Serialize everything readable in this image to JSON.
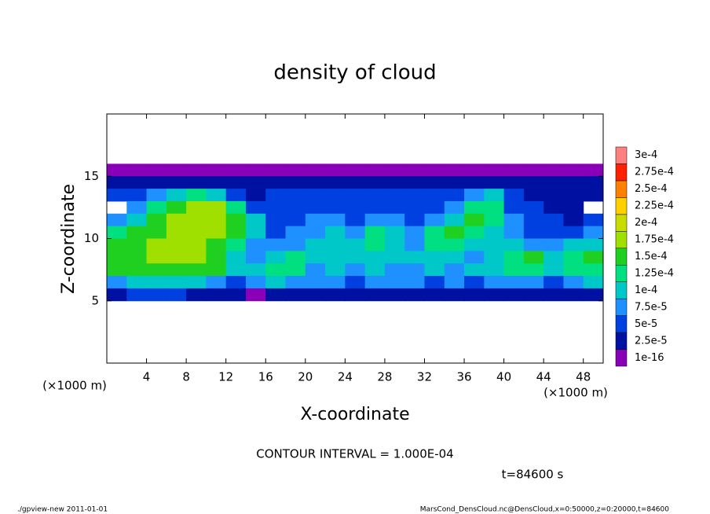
{
  "chart_data": {
    "type": "heatmap",
    "title": "density of cloud",
    "x_label": "X-coordinate",
    "y_label": "Z-coordinate",
    "x_unit": "(×1000 m)",
    "y_unit": "(×1000 m)",
    "contour_note": "CONTOUR INTERVAL = 1.000E-04",
    "time_label": "t=84600 s",
    "footer_left": "./gpview-new  2011-01-01",
    "footer_right": "MarsCond_DensCloud.nc@DensCloud,x=0:50000,z=0:20000,t=84600",
    "xlim": [
      0,
      50
    ],
    "ylim": [
      0,
      20
    ],
    "xticks": [
      4,
      8,
      12,
      16,
      20,
      24,
      28,
      32,
      36,
      40,
      44,
      48
    ],
    "yticks": [
      5,
      10,
      15
    ],
    "x": [
      1,
      3,
      5,
      7,
      9,
      11,
      13,
      15,
      17,
      19,
      21,
      23,
      25,
      27,
      29,
      31,
      33,
      35,
      37,
      39,
      41,
      43,
      45,
      47,
      49
    ],
    "y": [
      15.5,
      14.5,
      13.5,
      12.5,
      11.5,
      10.5,
      9.5,
      8.5,
      7.5,
      6.5,
      5.5
    ],
    "z": [
      [
        1e-05,
        1e-05,
        1e-05,
        1e-05,
        1e-05,
        1e-05,
        1e-05,
        1e-05,
        1e-05,
        1e-05,
        1e-05,
        1e-05,
        1e-05,
        1e-05,
        1e-05,
        1e-05,
        1e-05,
        1e-05,
        1e-05,
        1e-05,
        1e-05,
        1e-05,
        1e-05,
        1e-05,
        1e-05
      ],
      [
        3e-05,
        3e-05,
        3e-05,
        4e-05,
        4e-05,
        4e-05,
        4e-05,
        3e-05,
        3e-05,
        3e-05,
        3e-05,
        3e-05,
        3e-05,
        3e-05,
        3e-05,
        3e-05,
        3e-05,
        3e-05,
        4e-05,
        4e-05,
        3e-05,
        3e-05,
        3e-05,
        3e-05,
        3e-05
      ],
      [
        5e-05,
        6e-05,
        8e-05,
        0.00011,
        0.00013,
        0.00012,
        6e-05,
        4e-05,
        5e-05,
        5e-05,
        5e-05,
        5e-05,
        5e-05,
        5e-05,
        5e-05,
        5e-05,
        5e-05,
        5e-05,
        8e-05,
        0.0001,
        5e-05,
        3e-05,
        3e-05,
        3e-05,
        3e-05
      ],
      [
        null,
        8e-05,
        0.00013,
        0.00017,
        0.00019,
        0.00018,
        0.00014,
        7e-05,
        6e-05,
        6e-05,
        6e-05,
        6e-05,
        6e-05,
        6e-05,
        6e-05,
        6e-05,
        6e-05,
        8e-05,
        0.00013,
        0.00014,
        7e-05,
        5e-05,
        4e-05,
        4e-05,
        null
      ],
      [
        9e-05,
        0.00012,
        0.00016,
        0.00018,
        0.00019,
        0.00018,
        0.00016,
        0.0001,
        6e-05,
        7e-05,
        8e-05,
        8e-05,
        7e-05,
        9e-05,
        8e-05,
        7e-05,
        8e-05,
        0.00012,
        0.00015,
        0.00014,
        8e-05,
        5e-05,
        5e-05,
        4e-05,
        6e-05
      ],
      [
        0.00013,
        0.00016,
        0.00017,
        0.00018,
        0.00018,
        0.00018,
        0.00016,
        0.00011,
        7e-05,
        8e-05,
        9e-05,
        0.0001,
        9e-05,
        0.00013,
        0.0001,
        8e-05,
        0.00014,
        0.00015,
        0.00014,
        0.00012,
        9e-05,
        6e-05,
        7e-05,
        6e-05,
        8e-05
      ],
      [
        0.00015,
        0.00017,
        0.00018,
        0.00018,
        0.00018,
        0.00017,
        0.00013,
        9e-05,
        8e-05,
        9e-05,
        0.0001,
        0.00011,
        0.00012,
        0.00013,
        0.00012,
        9e-05,
        0.00013,
        0.00014,
        0.00011,
        0.0001,
        0.0001,
        8e-05,
        9e-05,
        0.0001,
        0.00011
      ],
      [
        0.00016,
        0.00017,
        0.00018,
        0.00018,
        0.00018,
        0.00016,
        0.00011,
        9e-05,
        0.00012,
        0.00013,
        0.0001,
        0.0001,
        0.00011,
        0.00012,
        0.00011,
        0.0001,
        0.00011,
        0.0001,
        9e-05,
        0.00011,
        0.00014,
        0.00015,
        0.00012,
        0.00014,
        0.00015
      ],
      [
        0.00015,
        0.00016,
        0.00016,
        0.00016,
        0.00016,
        0.00015,
        0.0001,
        0.00011,
        0.00014,
        0.00014,
        9e-05,
        0.0001,
        9e-05,
        0.0001,
        9e-05,
        9e-05,
        0.0001,
        9e-05,
        0.0001,
        0.00012,
        0.00014,
        0.00014,
        0.00011,
        0.00014,
        0.00014
      ],
      [
        9e-05,
        0.0001,
        0.0001,
        0.0001,
        0.0001,
        9e-05,
        7e-05,
        8e-05,
        0.0001,
        9e-05,
        8e-05,
        8e-05,
        7e-05,
        8e-05,
        8e-05,
        8e-05,
        7e-05,
        8e-05,
        7e-05,
        8e-05,
        9e-05,
        9e-05,
        7e-05,
        9e-05,
        0.0001
      ],
      [
        4e-05,
        5e-05,
        5e-05,
        5e-05,
        4e-05,
        4e-05,
        3e-05,
        2e-05,
        3e-05,
        3e-05,
        3e-05,
        3e-05,
        3e-05,
        3e-05,
        3e-05,
        3e-05,
        3e-05,
        3e-05,
        3e-05,
        3e-05,
        3e-05,
        3e-05,
        3e-05,
        3e-05,
        3e-05
      ]
    ],
    "levels": [
      {
        "value": 1e-16,
        "label": "1e-16"
      },
      {
        "value": 2.5e-05,
        "label": "2.5e-5"
      },
      {
        "value": 5e-05,
        "label": "5e-5"
      },
      {
        "value": 7.5e-05,
        "label": "7.5e-5"
      },
      {
        "value": 0.0001,
        "label": "1e-4"
      },
      {
        "value": 0.000125,
        "label": "1.25e-4"
      },
      {
        "value": 0.00015,
        "label": "1.5e-4"
      },
      {
        "value": 0.000175,
        "label": "1.75e-4"
      },
      {
        "value": 0.0002,
        "label": "2e-4"
      },
      {
        "value": 0.000225,
        "label": "2.25e-4"
      },
      {
        "value": 0.00025,
        "label": "2.5e-4"
      },
      {
        "value": 0.000275,
        "label": "2.75e-4"
      },
      {
        "value": 0.0003,
        "label": "3e-4"
      }
    ],
    "level_colors": [
      "#8a00b8",
      "#0010a0",
      "#0040e0",
      "#1e90ff",
      "#00c8c8",
      "#00e080",
      "#20d020",
      "#a0e000",
      "#c8dc00",
      "#ffd000",
      "#ff8000",
      "#ff2000",
      "#ff8080"
    ]
  }
}
